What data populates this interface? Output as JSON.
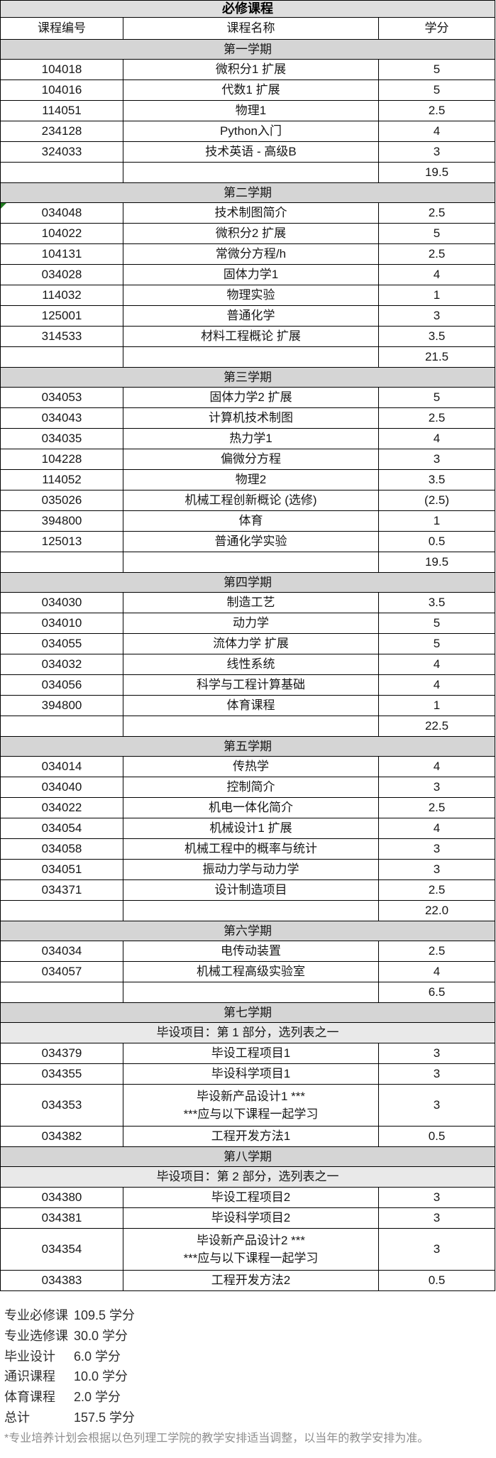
{
  "table": {
    "title": "必修课程",
    "columns": [
      "课程编号",
      "课程名称",
      "学分"
    ],
    "colors": {
      "title_band": "#dedede",
      "semester_band": "#d5d5d5",
      "note_band": "#e9e9e9",
      "border": "#000000",
      "cell_marker_green": "#1f7a1f",
      "footnote_gray": "#8e8e8e"
    },
    "sections": [
      {
        "semester": "第一学期",
        "courses": [
          {
            "code": "104018",
            "name": "微积分1 扩展",
            "credits": "5"
          },
          {
            "code": "104016",
            "name": "代数1 扩展",
            "credits": "5"
          },
          {
            "code": "114051",
            "name": "物理1",
            "credits": "2.5"
          },
          {
            "code": "234128",
            "name": "Python入门",
            "credits": "4"
          },
          {
            "code": "324033",
            "name": "技术英语 - 高级B",
            "credits": "3"
          }
        ],
        "total": "19.5"
      },
      {
        "semester": "第二学期",
        "courses": [
          {
            "code": "034048",
            "name": "技术制图简介",
            "credits": "2.5",
            "marker": "green-corner"
          },
          {
            "code": "104022",
            "name": "微积分2 扩展",
            "credits": "5"
          },
          {
            "code": "104131",
            "name": "常微分方程/h",
            "credits": "2.5"
          },
          {
            "code": "034028",
            "name": "固体力学1",
            "credits": "4"
          },
          {
            "code": "114032",
            "name": "物理实验",
            "credits": "1"
          },
          {
            "code": "125001",
            "name": "普通化学",
            "credits": "3"
          },
          {
            "code": "314533",
            "name": "材料工程概论 扩展",
            "credits": "3.5"
          }
        ],
        "total": "21.5"
      },
      {
        "semester": "第三学期",
        "courses": [
          {
            "code": "034053",
            "name": "固体力学2 扩展",
            "credits": "5"
          },
          {
            "code": "034043",
            "name": "计算机技术制图",
            "credits": "2.5"
          },
          {
            "code": "034035",
            "name": "热力学1",
            "credits": "4"
          },
          {
            "code": "104228",
            "name": "偏微分方程",
            "credits": "3"
          },
          {
            "code": "114052",
            "name": "物理2",
            "credits": "3.5"
          },
          {
            "code": "035026",
            "name": "机械工程创新概论 (选修)",
            "credits": "(2.5)"
          },
          {
            "code": "394800",
            "name": "体育",
            "credits": "1"
          },
          {
            "code": "125013",
            "name": "普通化学实验",
            "credits": "0.5"
          }
        ],
        "total": "19.5"
      },
      {
        "semester": "第四学期",
        "courses": [
          {
            "code": "034030",
            "name": "制造工艺",
            "credits": "3.5"
          },
          {
            "code": "034010",
            "name": "动力学",
            "credits": "5"
          },
          {
            "code": "034055",
            "name": "流体力学 扩展",
            "credits": "5"
          },
          {
            "code": "034032",
            "name": "线性系统",
            "credits": "4"
          },
          {
            "code": "034056",
            "name": "科学与工程计算基础",
            "credits": "4"
          },
          {
            "code": "394800",
            "name": "体育课程",
            "credits": "1"
          }
        ],
        "total": "22.5"
      },
      {
        "semester": "第五学期",
        "courses": [
          {
            "code": "034014",
            "name": "传热学",
            "credits": "4"
          },
          {
            "code": "034040",
            "name": "控制简介",
            "credits": "3"
          },
          {
            "code": "034022",
            "name": "机电一体化简介",
            "credits": "2.5"
          },
          {
            "code": "034054",
            "name": "机械设计1 扩展",
            "credits": "4"
          },
          {
            "code": "034058",
            "name": "机械工程中的概率与统计",
            "credits": "3"
          },
          {
            "code": "034051",
            "name": "振动力学与动力学",
            "credits": "3"
          },
          {
            "code": "034371",
            "name": "设计制造项目",
            "credits": "2.5"
          }
        ],
        "total": "22.0"
      },
      {
        "semester": "第六学期",
        "courses": [
          {
            "code": "034034",
            "name": "电传动装置",
            "credits": "2.5"
          },
          {
            "code": "034057",
            "name": "机械工程高级实验室",
            "credits": "4"
          }
        ],
        "total": "6.5"
      },
      {
        "semester": "第七学期",
        "note": "毕设项目：第 1 部分，选列表之一",
        "courses": [
          {
            "code": "034379",
            "name": "毕设工程项目1",
            "credits": "3"
          },
          {
            "code": "034355",
            "name": "毕设科学项目1",
            "credits": "3"
          },
          {
            "code": "034353",
            "name": "毕设新产品设计1 ***",
            "name2": "***应与以下课程一起学习",
            "credits": "3"
          },
          {
            "code": "034382",
            "name": "工程开发方法1",
            "credits": "0.5"
          }
        ],
        "total": null
      },
      {
        "semester": "第八学期",
        "note": "毕设项目：第 2 部分，选列表之一",
        "courses": [
          {
            "code": "034380",
            "name": "毕设工程项目2",
            "credits": "3"
          },
          {
            "code": "034381",
            "name": "毕设科学项目2",
            "credits": "3"
          },
          {
            "code": "034354",
            "name": "毕设新产品设计2 ***",
            "name2": "***应与以下课程一起学习",
            "credits": "3"
          },
          {
            "code": "034383",
            "name": "工程开发方法2",
            "credits": "0.5"
          }
        ],
        "total": null
      }
    ]
  },
  "summary": {
    "rows": [
      {
        "label": "专业必修课",
        "value": "109.5 学分"
      },
      {
        "label": "专业选修课",
        "value": "30.0 学分"
      },
      {
        "label": "毕业设计",
        "value": "6.0 学分"
      },
      {
        "label": "通识课程",
        "value": "10.0 学分"
      },
      {
        "label": "体育课程",
        "value": "2.0 学分"
      },
      {
        "label": "总计",
        "value": "157.5 学分"
      }
    ]
  },
  "footnote": "*专业培养计划会根据以色列理工学院的教学安排适当调整，以当年的教学安排为准。"
}
